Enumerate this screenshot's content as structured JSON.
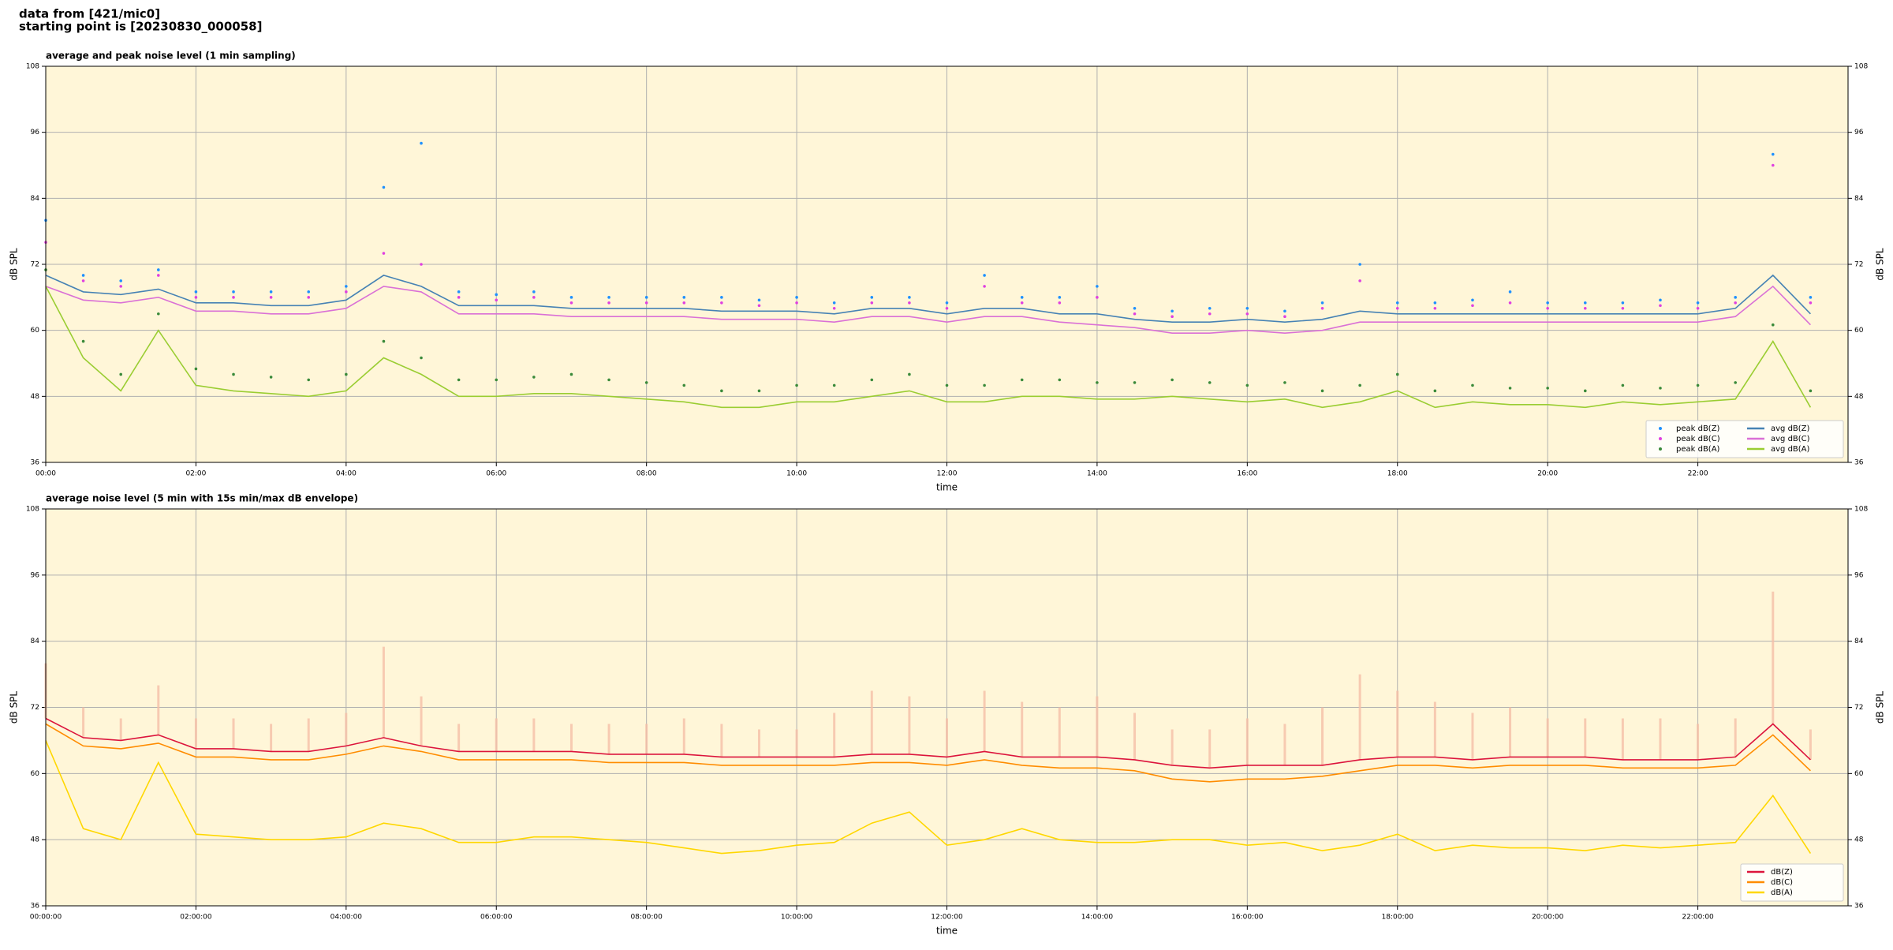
{
  "header": {
    "lines": [
      "data from [421/mic0]",
      "starting point is [20230830_000058]"
    ]
  },
  "chart_data": [
    {
      "type": "line",
      "title": "average and peak noise level (1 min sampling)",
      "xlabel": "time",
      "ylabel": "dB SPL",
      "x": [
        0,
        0.5,
        1,
        1.5,
        2,
        2.5,
        3,
        3.5,
        4,
        4.5,
        5,
        5.5,
        6,
        6.5,
        7,
        7.5,
        8,
        8.5,
        9,
        9.5,
        10,
        10.5,
        11,
        11.5,
        12,
        12.5,
        13,
        13.5,
        14,
        14.5,
        15,
        15.5,
        16,
        16.5,
        17,
        17.5,
        18,
        18.5,
        19,
        19.5,
        20,
        20.5,
        21,
        21.5,
        22,
        22.5,
        23,
        23.5
      ],
      "xlim": [
        0,
        24
      ],
      "xticks": [
        {
          "value": 0,
          "label": "00:00"
        },
        {
          "value": 2,
          "label": "02:00"
        },
        {
          "value": 4,
          "label": "04:00"
        },
        {
          "value": 6,
          "label": "06:00"
        },
        {
          "value": 8,
          "label": "08:00"
        },
        {
          "value": 10,
          "label": "10:00"
        },
        {
          "value": 12,
          "label": "12:00"
        },
        {
          "value": 14,
          "label": "14:00"
        },
        {
          "value": 16,
          "label": "16:00"
        },
        {
          "value": 18,
          "label": "18:00"
        },
        {
          "value": 20,
          "label": "20:00"
        },
        {
          "value": 22,
          "label": "22:00"
        }
      ],
      "ylim": [
        36,
        108
      ],
      "yticks": [
        36,
        48,
        60,
        72,
        84,
        96,
        108
      ],
      "grid": true,
      "legend": "lower right",
      "legend_columns": 2,
      "series": [
        {
          "name": "peak dB(Z)",
          "kind": "scatter",
          "color": "#1e90ff",
          "values": [
            80,
            70,
            69,
            71,
            67,
            67,
            67,
            67,
            68,
            86,
            94,
            67,
            66.5,
            67,
            66,
            66,
            66,
            66,
            66,
            65.5,
            66,
            65,
            66,
            66,
            65,
            70,
            66,
            66,
            68,
            64,
            63.5,
            64,
            64,
            63.5,
            65,
            72,
            65,
            65,
            65.5,
            67,
            65,
            65,
            65,
            65.5,
            65,
            66,
            92,
            66
          ]
        },
        {
          "name": "peak dB(C)",
          "kind": "scatter",
          "color": "#e040e0",
          "values": [
            76,
            69,
            68,
            70,
            66,
            66,
            66,
            66,
            67,
            74,
            72,
            66,
            65.5,
            66,
            65,
            65,
            65,
            65,
            65,
            64.5,
            65,
            64,
            65,
            65,
            64,
            68,
            65,
            65,
            66,
            63,
            62.5,
            63,
            63,
            62.5,
            64,
            69,
            64,
            64,
            64.5,
            65,
            64,
            64,
            64,
            64.5,
            64,
            65,
            90,
            65
          ]
        },
        {
          "name": "peak dB(A)",
          "kind": "scatter",
          "color": "#3a8a3a",
          "values": [
            71,
            58,
            52,
            63,
            53,
            52,
            51.5,
            51,
            52,
            58,
            55,
            51,
            51,
            51.5,
            52,
            51,
            50.5,
            50,
            49,
            49,
            50,
            50,
            51,
            52,
            50,
            50,
            51,
            51,
            50.5,
            50.5,
            51,
            50.5,
            50,
            50.5,
            49,
            50,
            52,
            49,
            50,
            49.5,
            49.5,
            49,
            50,
            49.5,
            50,
            50.5,
            61,
            49
          ]
        },
        {
          "name": "avg dB(Z)",
          "kind": "line",
          "color": "#4682b4",
          "values": [
            70,
            67,
            66.5,
            67.5,
            65,
            65,
            64.5,
            64.5,
            65.5,
            70,
            68,
            64.5,
            64.5,
            64.5,
            64,
            64,
            64,
            64,
            63.5,
            63.5,
            63.5,
            63,
            64,
            64,
            63,
            64,
            64,
            63,
            63,
            62,
            61.5,
            61.5,
            62,
            61.5,
            62,
            63.5,
            63,
            63,
            63,
            63,
            63,
            63,
            63,
            63,
            63,
            64,
            70,
            63
          ]
        },
        {
          "name": "avg dB(C)",
          "kind": "line",
          "color": "#da70d6",
          "values": [
            68,
            65.5,
            65,
            66,
            63.5,
            63.5,
            63,
            63,
            64,
            68,
            67,
            63,
            63,
            63,
            62.5,
            62.5,
            62.5,
            62.5,
            62,
            62,
            62,
            61.5,
            62.5,
            62.5,
            61.5,
            62.5,
            62.5,
            61.5,
            61,
            60.5,
            59.5,
            59.5,
            60,
            59.5,
            60,
            61.5,
            61.5,
            61.5,
            61.5,
            61.5,
            61.5,
            61.5,
            61.5,
            61.5,
            61.5,
            62.5,
            68,
            61
          ]
        },
        {
          "name": "avg dB(A)",
          "kind": "line",
          "color": "#9acd32",
          "values": [
            68,
            55,
            49,
            60,
            50,
            49,
            48.5,
            48,
            49,
            55,
            52,
            48,
            48,
            48.5,
            48.5,
            48,
            47.5,
            47,
            46,
            46,
            47,
            47,
            48,
            49,
            47,
            47,
            48,
            48,
            47.5,
            47.5,
            48,
            47.5,
            47,
            47.5,
            46,
            47,
            49,
            46,
            47,
            46.5,
            46.5,
            46,
            47,
            46.5,
            47,
            47.5,
            58,
            46
          ]
        }
      ]
    },
    {
      "type": "line",
      "title": "average noise level (5 min with 15s min/max dB envelope)",
      "xlabel": "time",
      "ylabel": "dB SPL",
      "x": [
        0,
        0.5,
        1,
        1.5,
        2,
        2.5,
        3,
        3.5,
        4,
        4.5,
        5,
        5.5,
        6,
        6.5,
        7,
        7.5,
        8,
        8.5,
        9,
        9.5,
        10,
        10.5,
        11,
        11.5,
        12,
        12.5,
        13,
        13.5,
        14,
        14.5,
        15,
        15.5,
        16,
        16.5,
        17,
        17.5,
        18,
        18.5,
        19,
        19.5,
        20,
        20.5,
        21,
        21.5,
        22,
        22.5,
        23,
        23.5
      ],
      "xlim": [
        0,
        24
      ],
      "xticks": [
        {
          "value": 0,
          "label": "00:00:00"
        },
        {
          "value": 2,
          "label": "02:00:00"
        },
        {
          "value": 4,
          "label": "04:00:00"
        },
        {
          "value": 6,
          "label": "06:00:00"
        },
        {
          "value": 8,
          "label": "08:00:00"
        },
        {
          "value": 10,
          "label": "10:00:00"
        },
        {
          "value": 12,
          "label": "12:00:00"
        },
        {
          "value": 14,
          "label": "14:00:00"
        },
        {
          "value": 16,
          "label": "16:00:00"
        },
        {
          "value": 18,
          "label": "18:00:00"
        },
        {
          "value": 20,
          "label": "20:00:00"
        },
        {
          "value": 22,
          "label": "22:00:00"
        }
      ],
      "ylim": [
        36,
        108
      ],
      "yticks": [
        36,
        48,
        60,
        72,
        84,
        96,
        108
      ],
      "grid": true,
      "legend": "lower right",
      "legend_columns": 1,
      "envelope": {
        "color": "#f6c0a8",
        "values": [
          80,
          72,
          70,
          76,
          70,
          70,
          69,
          70,
          71,
          83,
          74,
          69,
          70,
          70,
          69,
          69,
          69,
          70,
          69,
          68,
          68,
          71,
          75,
          74,
          70,
          75,
          73,
          72,
          74,
          71,
          68,
          68,
          70,
          69,
          72,
          78,
          75,
          73,
          71,
          72,
          70,
          70,
          70,
          70,
          69,
          70,
          93,
          68
        ]
      },
      "series": [
        {
          "name": "dB(Z)",
          "kind": "line",
          "color": "#dc143c",
          "values": [
            70,
            66.5,
            66,
            67,
            64.5,
            64.5,
            64,
            64,
            65,
            66.5,
            65,
            64,
            64,
            64,
            64,
            63.5,
            63.5,
            63.5,
            63,
            63,
            63,
            63,
            63.5,
            63.5,
            63,
            64,
            63,
            63,
            63,
            62.5,
            61.5,
            61,
            61.5,
            61.5,
            61.5,
            62.5,
            63,
            63,
            62.5,
            63,
            63,
            63,
            62.5,
            62.5,
            62.5,
            63,
            69,
            62.5
          ]
        },
        {
          "name": "dB(C)",
          "kind": "line",
          "color": "#ff8c00",
          "values": [
            69,
            65,
            64.5,
            65.5,
            63,
            63,
            62.5,
            62.5,
            63.5,
            65,
            64,
            62.5,
            62.5,
            62.5,
            62.5,
            62,
            62,
            62,
            61.5,
            61.5,
            61.5,
            61.5,
            62,
            62,
            61.5,
            62.5,
            61.5,
            61,
            61,
            60.5,
            59,
            58.5,
            59,
            59,
            59.5,
            60.5,
            61.5,
            61.5,
            61,
            61.5,
            61.5,
            61.5,
            61,
            61,
            61,
            61.5,
            67,
            60.5
          ]
        },
        {
          "name": "dB(A)",
          "kind": "line",
          "color": "#ffd700",
          "values": [
            66,
            50,
            48,
            62,
            49,
            48.5,
            48,
            48,
            48.5,
            51,
            50,
            47.5,
            47.5,
            48.5,
            48.5,
            48,
            47.5,
            46.5,
            45.5,
            46,
            47,
            47.5,
            51,
            53,
            47,
            48,
            50,
            48,
            47.5,
            47.5,
            48,
            48,
            47,
            47.5,
            46,
            47,
            49,
            46,
            47,
            46.5,
            46.5,
            46,
            47,
            46.5,
            47,
            47.5,
            56,
            45.5
          ]
        }
      ]
    }
  ]
}
